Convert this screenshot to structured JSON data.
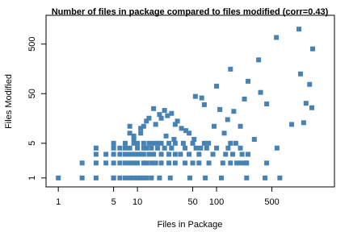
{
  "chart_data": {
    "type": "scatter",
    "title": "Number of files in package compared to files modified (corr=0.43)",
    "x_label": "Files in Package",
    "y_label": "Files Modified",
    "log_x": true,
    "log_y": true,
    "color": "#4682b4",
    "xlim": [
      0.7,
      3090
    ],
    "ylim": [
      0.66,
      1900
    ],
    "xticks": [
      1,
      5,
      10,
      50,
      100,
      500
    ],
    "yticks": [
      1,
      5,
      50,
      500
    ],
    "x": [
      1,
      2,
      3,
      5,
      5,
      6,
      7,
      8,
      9,
      10,
      11,
      12,
      13,
      15,
      19,
      26,
      46,
      72,
      115,
      240,
      410,
      630,
      2,
      3,
      4,
      5,
      6,
      7,
      8,
      9,
      10,
      12,
      13,
      15,
      17,
      20,
      25,
      30,
      40,
      50,
      60,
      80,
      120,
      150,
      180,
      200,
      230,
      3,
      4,
      5,
      6,
      7,
      8,
      9,
      10,
      11,
      12,
      14,
      16,
      20,
      25,
      30,
      35,
      45,
      60,
      90,
      130,
      160,
      250,
      3,
      5,
      6,
      7,
      8,
      10,
      12,
      13,
      15,
      18,
      22,
      27,
      40,
      55,
      75,
      100,
      140,
      200,
      5,
      7,
      9,
      10,
      12,
      14,
      16,
      18,
      20,
      25,
      30,
      38,
      50,
      70,
      150,
      19,
      20,
      14,
      13,
      12,
      11,
      8,
      9,
      8,
      27,
      32,
      41,
      36,
      23,
      29,
      52,
      63,
      79,
      93,
      125,
      138,
      200,
      175,
      210,
      300,
      240,
      430,
      570,
      1100,
      1640,
      1150,
      1500,
      1260,
      1600,
      1350,
      890,
      580,
      340,
      150,
      250,
      100,
      65,
      360,
      430,
      225,
      165,
      54,
      16,
      22,
      17,
      11,
      9,
      24,
      30,
      45,
      110,
      70
    ],
    "values": [
      1,
      1,
      1,
      1,
      1,
      1,
      1,
      1,
      1,
      1,
      1,
      1,
      1,
      1,
      1,
      1,
      1,
      1,
      1,
      1,
      1,
      1,
      2,
      2,
      2,
      2,
      2,
      2,
      2,
      2,
      2,
      2,
      2,
      2,
      2,
      2,
      2,
      2,
      2,
      2,
      2,
      2,
      2,
      2,
      2,
      2,
      2,
      3,
      3,
      3,
      3,
      3,
      3,
      3,
      3,
      3,
      3,
      3,
      3,
      3,
      3,
      3,
      3,
      3,
      3,
      3,
      3,
      3,
      3,
      4,
      4,
      4,
      4,
      4,
      4,
      4,
      4,
      4,
      4,
      4,
      4,
      4,
      4,
      4,
      4,
      4,
      4,
      5,
      5,
      5,
      5,
      5,
      5,
      5,
      5,
      5,
      5,
      5,
      5,
      5,
      5,
      5,
      19,
      16,
      16,
      14,
      11,
      10,
      8,
      7,
      11,
      20,
      14,
      9,
      10,
      7,
      6,
      6,
      4,
      5,
      11,
      8,
      15,
      11,
      5,
      3,
      6,
      2,
      2,
      680,
      1000,
      400,
      125,
      77,
      13,
      26,
      32,
      12,
      4,
      240,
      156,
      89,
      71,
      41,
      53,
      31,
      39,
      22,
      44,
      25,
      23,
      12,
      8,
      6,
      18,
      12,
      8,
      24,
      30
    ]
  }
}
